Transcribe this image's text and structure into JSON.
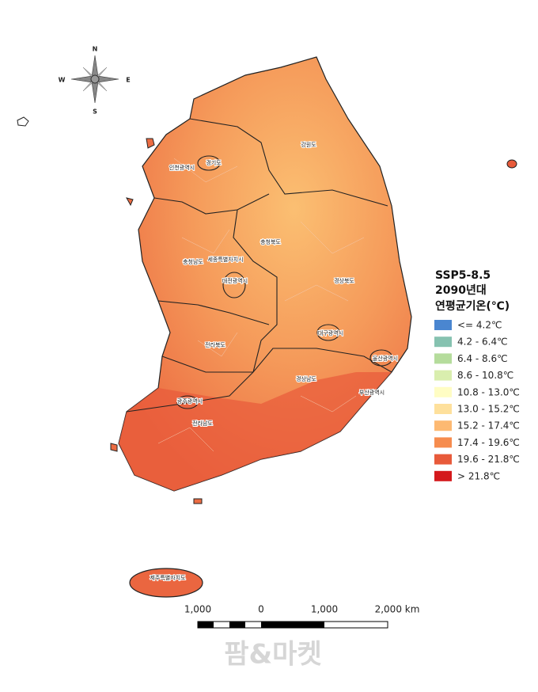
{
  "compass": {
    "north": "N",
    "east": "E",
    "south": "S",
    "west": "W"
  },
  "regions": [
    "경기도",
    "인천광역시",
    "강원도",
    "충청북도",
    "충청남도",
    "세종특별자치시",
    "대전광역시",
    "경상북도",
    "대구광역시",
    "울산광역시",
    "경상남도",
    "부산광역시",
    "전라북도",
    "광주광역시",
    "전라남도",
    "제주특별자치도"
  ],
  "legend": {
    "title": [
      "SSP5-8.5",
      "2090년대",
      "연평균기온(℃)"
    ],
    "items": [
      {
        "label": "<= 4.2℃",
        "color": "#4a86d0"
      },
      {
        "label": "4.2 - 6.4℃",
        "color": "#86c2b0"
      },
      {
        "label": "6.4 - 8.6℃",
        "color": "#b5dc9c"
      },
      {
        "label": "8.6 - 10.8℃",
        "color": "#d9eeae"
      },
      {
        "label": "10.8 - 13.0℃",
        "color": "#fffdc4"
      },
      {
        "label": "13.0 - 15.2℃",
        "color": "#fee09c"
      },
      {
        "label": "15.2 - 17.4℃",
        "color": "#fdb972"
      },
      {
        "label": "17.4 - 19.6℃",
        "color": "#f68c4e"
      },
      {
        "label": "19.6 - 21.8℃",
        "color": "#e85a3a"
      },
      {
        "label": "> 21.8℃",
        "color": "#d4191c"
      }
    ]
  },
  "scale_bar": {
    "labels": [
      "1,000",
      "0",
      "1,000",
      "2,000 km"
    ]
  },
  "watermark": "팜&마켓"
}
